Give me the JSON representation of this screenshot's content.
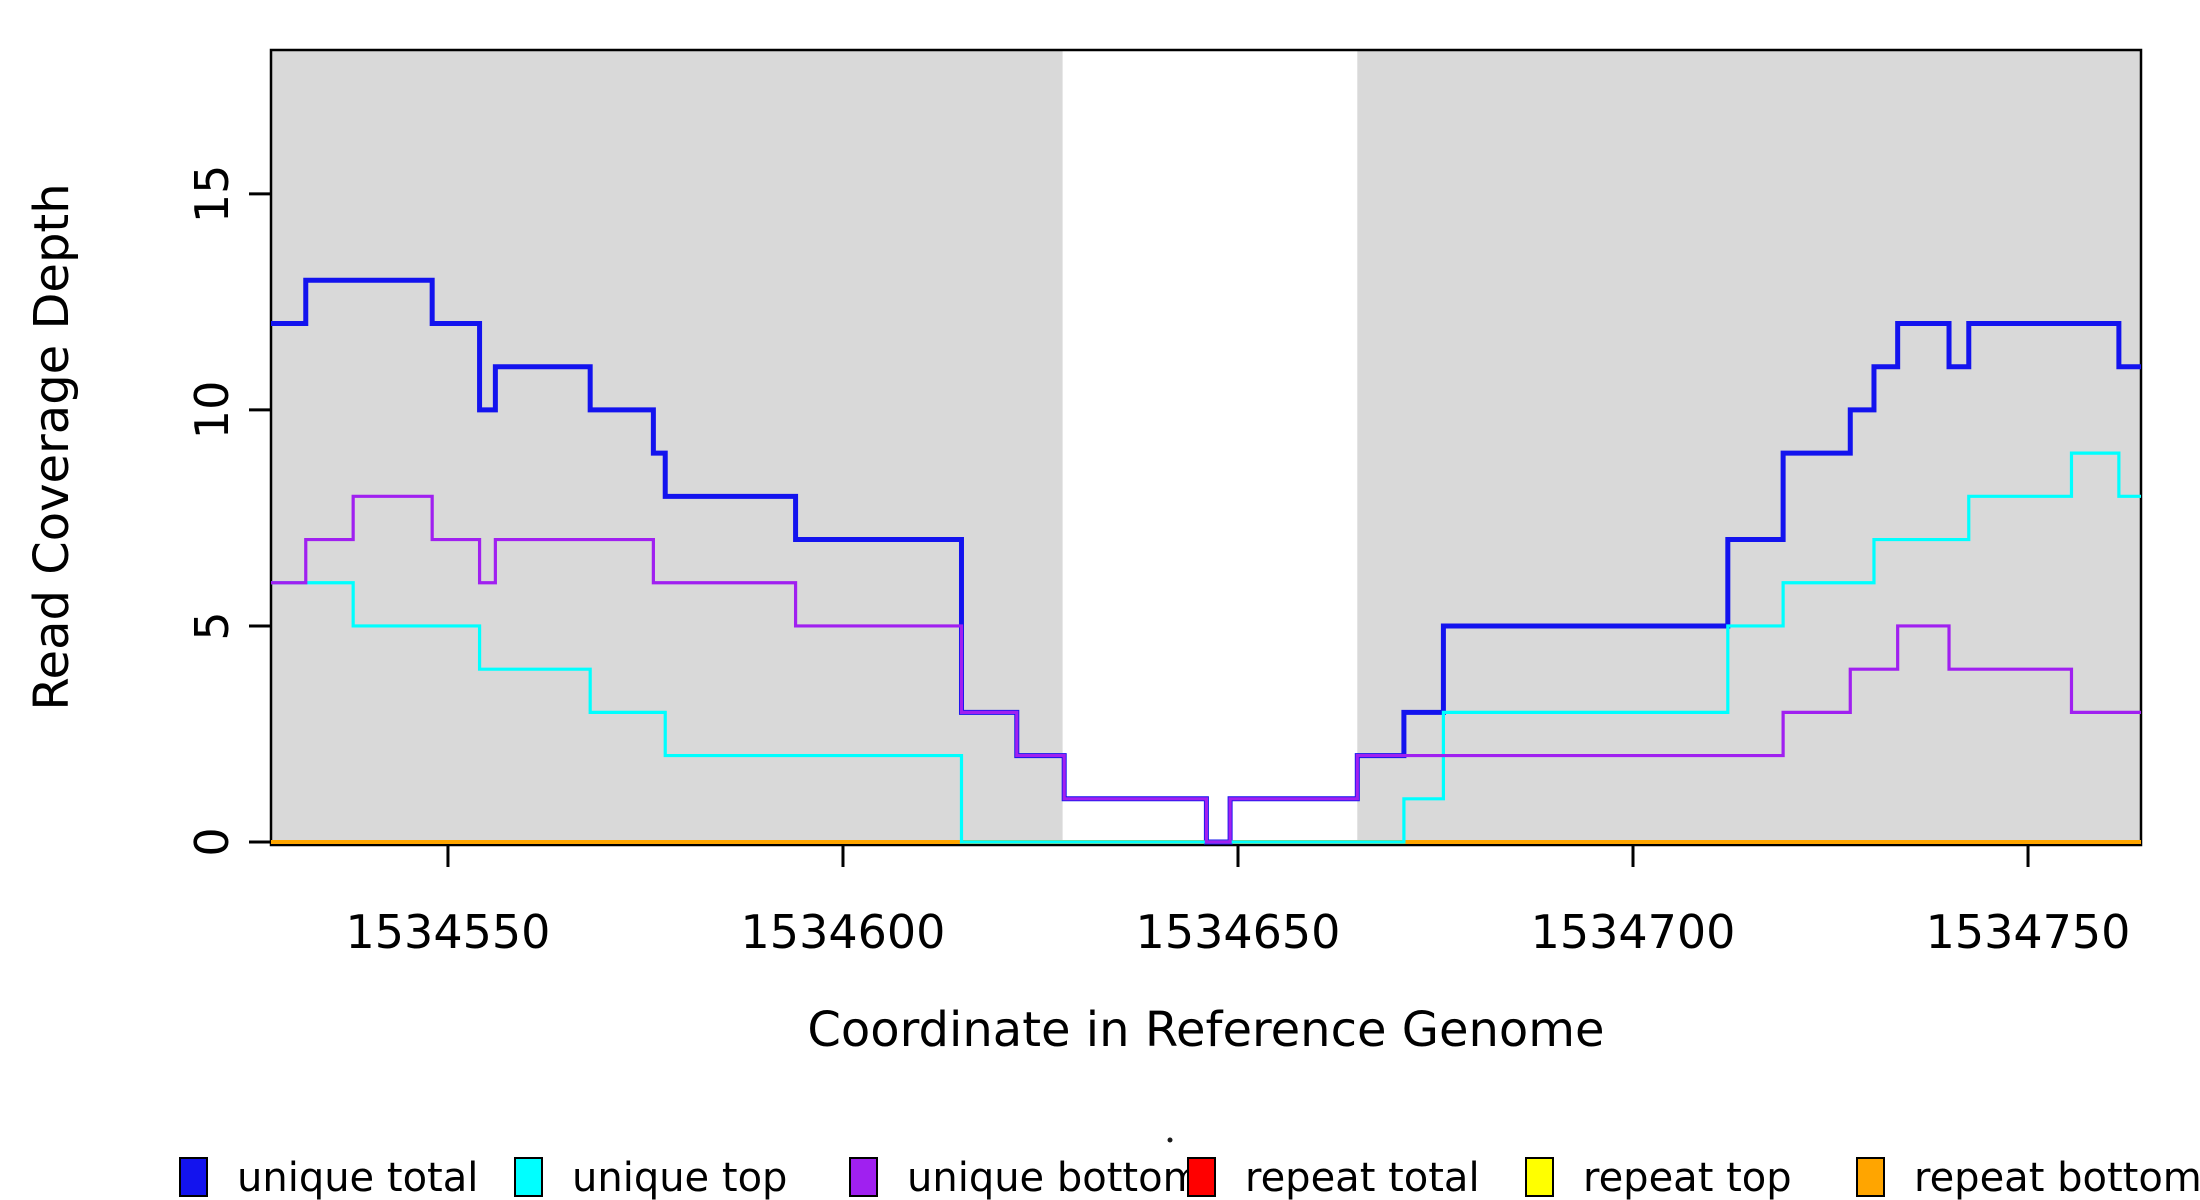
{
  "figure": {
    "xlabel": "Coordinate in Reference Genome",
    "ylabel": "Read Coverage Depth"
  },
  "chart_data": {
    "type": "line",
    "subtype": "step-coverage",
    "title": "",
    "xlabel": "Coordinate in Reference Genome",
    "ylabel": "Read Coverage Depth",
    "xlim": [
      1534527.6,
      1534764.3
    ],
    "ylim": [
      0,
      18.33
    ],
    "x_ticks": [
      1534550,
      1534600,
      1534650,
      1534700,
      1534750
    ],
    "x_tick_labels": [
      "1534550",
      "1534600",
      "1534650",
      "1534700",
      "1534750"
    ],
    "y_ticks": [
      0,
      5,
      10,
      15
    ],
    "y_tick_labels": [
      "0",
      "5",
      "10",
      "15"
    ],
    "grid": false,
    "plot_background": "#ffffff",
    "shaded_regions": {
      "color": "#D9D9D9",
      "meaning": "uniquely mappable regions",
      "ranges": [
        [
          1534527.6,
          1534627.8
        ],
        [
          1534665.1,
          1534764.3
        ]
      ]
    },
    "series": [
      {
        "name": "repeat total",
        "color": "#FF0000",
        "width": 3.2,
        "steps": [
          [
            1534527.6,
            0
          ]
        ]
      },
      {
        "name": "repeat top",
        "color": "#FFFF00",
        "width": 3.2,
        "steps": [
          [
            1534527.6,
            0
          ]
        ]
      },
      {
        "name": "repeat bottom",
        "color": "#FFA500",
        "width": 4,
        "steps": [
          [
            1534527.6,
            0
          ]
        ]
      },
      {
        "name": "unique total",
        "color": "#1313EE",
        "width": 5,
        "steps": [
          [
            1534527.6,
            12
          ],
          [
            1534532,
            13
          ],
          [
            1534548,
            12
          ],
          [
            1534554,
            10
          ],
          [
            1534556,
            11
          ],
          [
            1534568,
            10
          ],
          [
            1534576,
            9
          ],
          [
            1534577.5,
            8
          ],
          [
            1534594,
            7
          ],
          [
            1534615,
            3
          ],
          [
            1534622,
            2
          ],
          [
            1534628,
            1
          ],
          [
            1534646,
            0
          ],
          [
            1534649,
            1
          ],
          [
            1534665.1,
            2
          ],
          [
            1534671,
            3
          ],
          [
            1534676,
            5
          ],
          [
            1534712,
            7
          ],
          [
            1534719,
            9
          ],
          [
            1534727.5,
            10
          ],
          [
            1534730.5,
            11
          ],
          [
            1534733.5,
            12
          ],
          [
            1534740,
            11
          ],
          [
            1534742.5,
            12
          ],
          [
            1534761.5,
            11
          ]
        ]
      },
      {
        "name": "unique top",
        "color": "#00FFFF",
        "width": 3.2,
        "steps": [
          [
            1534527.6,
            6
          ],
          [
            1534538,
            5
          ],
          [
            1534554,
            4
          ],
          [
            1534568,
            3
          ],
          [
            1534577.5,
            2
          ],
          [
            1534615,
            0
          ],
          [
            1534671,
            1
          ],
          [
            1534676,
            3
          ],
          [
            1534712,
            5
          ],
          [
            1534719,
            6
          ],
          [
            1534730.5,
            7
          ],
          [
            1534742.5,
            8
          ],
          [
            1534755.5,
            9
          ],
          [
            1534761.5,
            8
          ]
        ]
      },
      {
        "name": "unique bottom",
        "color": "#A020F0",
        "width": 3.2,
        "steps": [
          [
            1534527.6,
            6
          ],
          [
            1534532,
            7
          ],
          [
            1534538,
            8
          ],
          [
            1534548,
            7
          ],
          [
            1534554,
            6
          ],
          [
            1534556,
            7
          ],
          [
            1534576,
            6
          ],
          [
            1534594,
            5
          ],
          [
            1534615,
            3
          ],
          [
            1534622,
            2
          ],
          [
            1534628,
            1
          ],
          [
            1534646,
            0
          ],
          [
            1534649,
            1
          ],
          [
            1534665.1,
            2
          ],
          [
            1534719,
            3
          ],
          [
            1534727.5,
            4
          ],
          [
            1534733.5,
            5
          ],
          [
            1534740,
            4
          ],
          [
            1534755.5,
            3
          ]
        ]
      }
    ],
    "legend": {
      "position": "bottom",
      "items": [
        {
          "label": "unique total",
          "color": "#1313EE"
        },
        {
          "label": "unique top",
          "color": "#00FFFF"
        },
        {
          "label": "unique bottom",
          "color": "#A020F0"
        },
        {
          "label": "repeat total",
          "color": "#FF0000"
        },
        {
          "label": "repeat top",
          "color": "#FFFF00"
        },
        {
          "label": "repeat bottom",
          "color": "#FFA500"
        }
      ]
    }
  }
}
